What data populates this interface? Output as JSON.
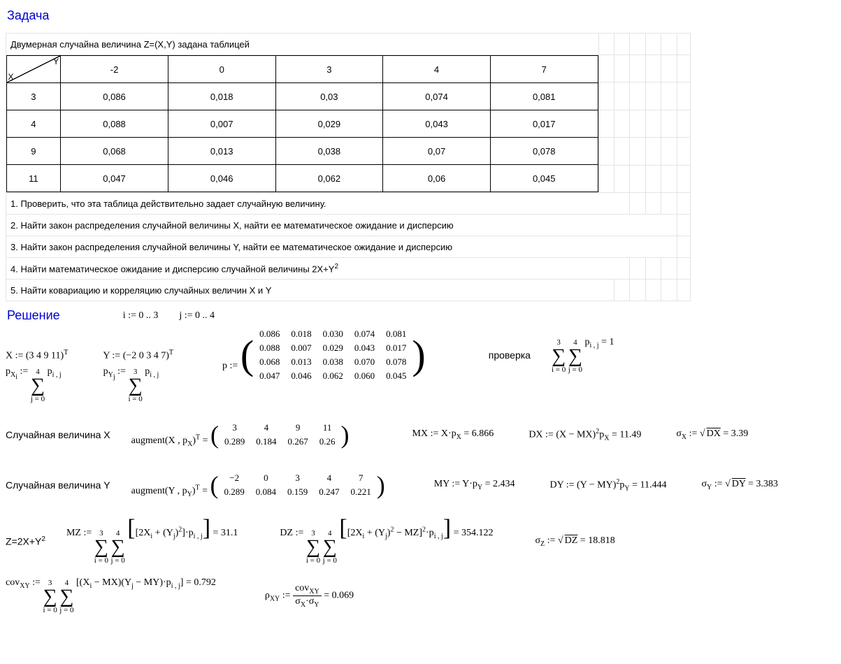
{
  "titles": {
    "task": "Задача",
    "solution": "Решение"
  },
  "problem_intro": "Двумерная случайна величина Z=(X,Y) задана таблицей",
  "table": {
    "corner_x": "X",
    "corner_y": "Y",
    "y_headers": [
      "-2",
      "0",
      "3",
      "4",
      "7"
    ],
    "x_headers": [
      "3",
      "4",
      "9",
      "11"
    ],
    "rows": [
      [
        "0,086",
        "0,018",
        "0,03",
        "0,074",
        "0,081"
      ],
      [
        "0,088",
        "0,007",
        "0,029",
        "0,043",
        "0,017"
      ],
      [
        "0,068",
        "0,013",
        "0,038",
        "0,07",
        "0,078"
      ],
      [
        "0,047",
        "0,046",
        "0,062",
        "0,06",
        "0,045"
      ]
    ]
  },
  "tasks": [
    "1. Проверить, что эта таблица действительно задает случайную величину.",
    "2. Найти закон распределения случайной величины X, найти ее математическое ожидание и дисперсию",
    "3. Найти закон распределения случайной величины Y, найти ее математическое ожидание и дисперсию",
    "4. Найти математическое ожидание и дисперсию случайной величины 2X+Y",
    "5. Найти ковариацию и корреляцию случайных величин X и Y"
  ],
  "task4_sup": "2",
  "solution": {
    "i_range": "i := 0 .. 3",
    "j_range": "j := 0 .. 4",
    "X_def": "X := (3  4  9  11)",
    "Y_def": "Y := (−2  0  3  4  7)",
    "p_label": "p :=",
    "p_matrix": [
      [
        "0.086",
        "0.018",
        "0.030",
        "0.074",
        "0.081"
      ],
      [
        "0.088",
        "0.007",
        "0.029",
        "0.043",
        "0.017"
      ],
      [
        "0.068",
        "0.013",
        "0.038",
        "0.070",
        "0.078"
      ],
      [
        "0.047",
        "0.046",
        "0.062",
        "0.060",
        "0.045"
      ]
    ],
    "check_label": "проверка",
    "check_result": "= 1",
    "px_sum_top": "4",
    "px_sum_bot": "j = 0",
    "py_sum_top": "3",
    "py_sum_bot": "i = 0",
    "p_body": "p",
    "sub_ij": "i , j",
    "rvX_label": "Случайная величина X",
    "aug_label": "augment",
    "augX_matrix": [
      [
        "3",
        "4",
        "9",
        "11"
      ],
      [
        "0.289",
        "0.184",
        "0.267",
        "0.26"
      ]
    ],
    "MX": "MX := X·p",
    "MX_sub": "X",
    "MX_val": " = 6.866",
    "DX": "DX := (X − MX)",
    "DX_sup": "2",
    "DX_sub": "X",
    "DX_val": " = 11.49",
    "sigX": "σ",
    "sigX_sub": "X",
    "sigX_eq": " := ",
    "sigX_root": "DX",
    "sigX_val": " = 3.39",
    "rvY_label": "Случайная величина Y",
    "augY_matrix": [
      [
        "−2",
        "0",
        "3",
        "4",
        "7"
      ],
      [
        "0.289",
        "0.084",
        "0.159",
        "0.247",
        "0.221"
      ]
    ],
    "MY": "MY := Y·p",
    "MY_sub": "Y",
    "MY_val": " = 2.434",
    "DY": "DY := (Y − MY)",
    "DY_sup": "2",
    "DY_sub": "Y",
    "DY_val": " = 11.444",
    "sigY_sub": "Y",
    "sigY_root": "DY",
    "sigY_val": " = 3.383",
    "Z_label": "Z=2X+Y",
    "Z_sup": "2",
    "MZ_label": "MZ := ",
    "MZ_body": "2X",
    "MZ_part2": " + (Y",
    "MZ_j": "j",
    "MZ_part3": ")",
    "MZ_sq": "2",
    "MZ_val": " = 31.1",
    "DZ_label": "DZ := ",
    "DZ_minus": " − MZ",
    "DZ_val": " = 354.122",
    "sigZ_sub": "Z",
    "sigZ_root": "DZ",
    "sigZ_val": " = 18.818",
    "cov_label": "cov",
    "cov_sub": "XY",
    "cov_assign": " := ",
    "cov_body1": "(X",
    "cov_i": "i",
    "cov_body2": " − MX)(Y",
    "cov_body3": " − MY)·p",
    "cov_val": " = 0.792",
    "rho_label": "ρ",
    "rho_sub": "XY",
    "rho_assign": " := ",
    "rho_denom1": "σ",
    "rho_denom_sub1": "X",
    "rho_dot": "·σ",
    "rho_denom_sub2": "Y",
    "rho_val": " = 0.069",
    "sum_top3": "3",
    "sum_bot_i": "i = 0",
    "sum_top4": "4",
    "sum_bot_j": "j = 0",
    "T_sup": "T"
  }
}
